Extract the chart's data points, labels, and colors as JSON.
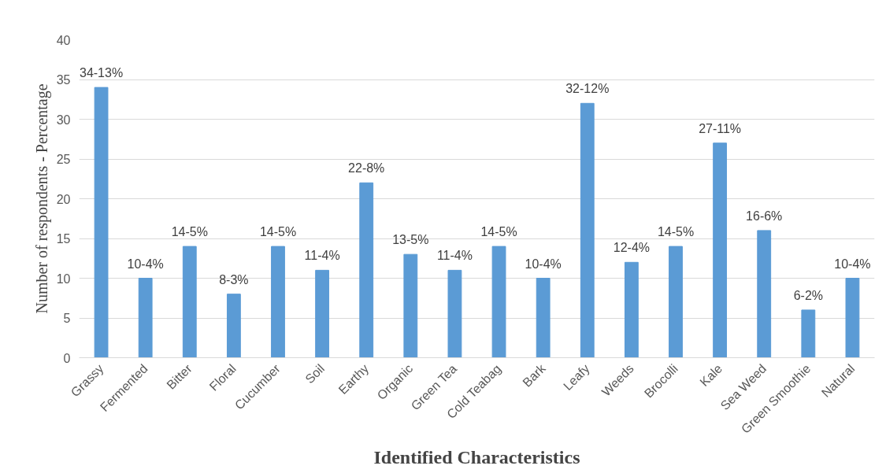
{
  "chart_data": {
    "type": "bar",
    "xlabel": "Identified Characteristics",
    "ylabel": "Number of respondents - Percentage",
    "categories": [
      "Grassy",
      "Fermented",
      "Bitter",
      "Floral",
      "Cucumber",
      "Soil",
      "Earthy",
      "Organic",
      "Green Tea",
      "Cold Teabag",
      "Bark",
      "Leafy",
      "Weeds",
      "Brocolli",
      "Kale",
      "Sea Weed",
      "Green Smoothie",
      "Natural"
    ],
    "values": [
      34,
      10,
      14,
      8,
      14,
      11,
      22,
      13,
      11,
      14,
      10,
      32,
      12,
      14,
      27,
      16,
      6,
      10
    ],
    "value_labels": [
      "34-13%",
      "10-4%",
      "14-5%",
      "8-3%",
      "14-5%",
      "11-4%",
      "22-8%",
      "13-5%",
      "11-4%",
      "14-5%",
      "10-4%",
      "32-12%",
      "12-4%",
      "14-5%",
      "27-11%",
      "16-6%",
      "6-2%",
      "10-4%"
    ],
    "color": "#5b9bd5",
    "ylim": [
      0,
      40
    ],
    "yticks": [
      0,
      5,
      10,
      15,
      20,
      25,
      30,
      35,
      40
    ],
    "grid": "y"
  }
}
